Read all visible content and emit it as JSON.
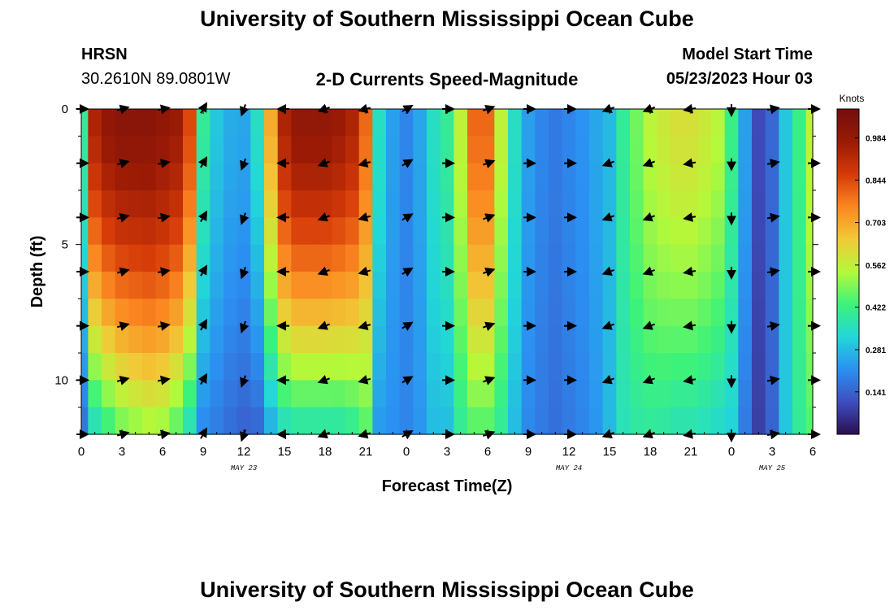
{
  "page": {
    "title": "University of Southern Mississippi Ocean Cube",
    "footer_title": "University of Southern Mississippi Ocean Cube"
  },
  "header": {
    "station": "HRSN",
    "coords": "30.2610N  89.0801W",
    "plot_title": "2-D Currents Speed-Magnitude",
    "model_label": "Model Start Time",
    "model_time": "05/23/2023 Hour 03"
  },
  "chart_data": {
    "type": "heatmap",
    "title": "2-D Currents Speed-Magnitude",
    "xlabel": "Forecast Time(Z)",
    "ylabel": "Depth (ft)",
    "x_tick_labels": [
      "0",
      "3",
      "6",
      "9",
      "12",
      "15",
      "18",
      "21",
      "0",
      "3",
      "6",
      "9",
      "12",
      "15",
      "18",
      "21",
      "0",
      "3",
      "6"
    ],
    "x_hours_range": [
      0,
      54
    ],
    "y_ticks": [
      0,
      5,
      10
    ],
    "ylim": [
      0,
      12
    ],
    "date_labels": [
      {
        "label": "MAY 23",
        "hour": 12
      },
      {
        "label": "MAY 24",
        "hour": 36
      },
      {
        "label": "MAY 25",
        "hour": 51
      }
    ],
    "colorbar": {
      "unit": "Knots",
      "ticks": [
        "0.984",
        "0.844",
        "0.703",
        "0.562",
        "0.422",
        "0.281",
        "0.141"
      ],
      "tick_values": [
        0.984,
        0.844,
        0.703,
        0.562,
        0.422,
        0.281,
        0.141
      ],
      "min": 0.0,
      "max": 1.08,
      "colors": [
        "#2b0f4f",
        "#3e4fc0",
        "#2b90f2",
        "#22d7d8",
        "#3cf27a",
        "#b4f93a",
        "#f1c937",
        "#fb8620",
        "#d53a08",
        "#9a1a05",
        "#720e0e"
      ]
    },
    "hours": [
      0,
      1,
      2,
      3,
      4,
      5,
      6,
      7,
      8,
      9,
      10,
      11,
      12,
      13,
      14,
      15,
      16,
      17,
      18,
      19,
      20,
      21,
      22,
      23,
      24,
      25,
      26,
      27,
      28,
      29,
      30,
      31,
      32,
      33,
      34,
      35,
      36,
      37,
      38,
      39,
      40,
      41,
      42,
      43,
      44,
      45,
      46,
      47,
      48,
      49,
      50,
      51,
      52,
      53,
      54
    ],
    "depth_levels": [
      0,
      2,
      4,
      6,
      8,
      10,
      12
    ],
    "speed_profiles": {
      "surface": [
        0.4,
        0.94,
        1.0,
        1.02,
        1.02,
        1.02,
        1.0,
        0.98,
        0.85,
        0.4,
        0.3,
        0.26,
        0.25,
        0.35,
        0.7,
        0.94,
        1.0,
        1.0,
        1.0,
        0.98,
        0.94,
        0.8,
        0.35,
        0.24,
        0.2,
        0.25,
        0.35,
        0.4,
        0.56,
        0.8,
        0.8,
        0.56,
        0.35,
        0.24,
        0.2,
        0.18,
        0.2,
        0.22,
        0.25,
        0.28,
        0.4,
        0.48,
        0.55,
        0.58,
        0.6,
        0.6,
        0.58,
        0.55,
        0.42,
        0.24,
        0.1,
        0.15,
        0.3,
        0.42,
        0.56
      ],
      "bottom_ratio": [
        0.4,
        0.35,
        0.4,
        0.45,
        0.48,
        0.5,
        0.5,
        0.45,
        0.4,
        0.5,
        0.6,
        0.6,
        0.55,
        0.4,
        0.35,
        0.35,
        0.35,
        0.35,
        0.35,
        0.36,
        0.4,
        0.55,
        0.65,
        0.9,
        1.0,
        0.9,
        0.8,
        0.7,
        0.7,
        0.55,
        0.55,
        0.7,
        0.8,
        0.85,
        0.9,
        0.9,
        0.9,
        0.9,
        0.9,
        1.0,
        0.9,
        0.8,
        0.7,
        0.65,
        0.6,
        0.6,
        0.6,
        0.6,
        0.75,
        0.75,
        0.8,
        0.95,
        1.0,
        0.95,
        0.8
      ]
    },
    "vector_times": [
      0,
      3,
      6,
      9,
      12,
      15,
      18,
      21,
      24,
      27,
      30,
      33,
      36,
      39,
      42,
      45,
      48,
      51,
      54
    ],
    "vector_directions_deg": [
      0,
      15,
      10,
      60,
      250,
      180,
      200,
      195,
      30,
      0,
      20,
      0,
      0,
      200,
      200,
      190,
      270,
      10,
      0
    ]
  }
}
